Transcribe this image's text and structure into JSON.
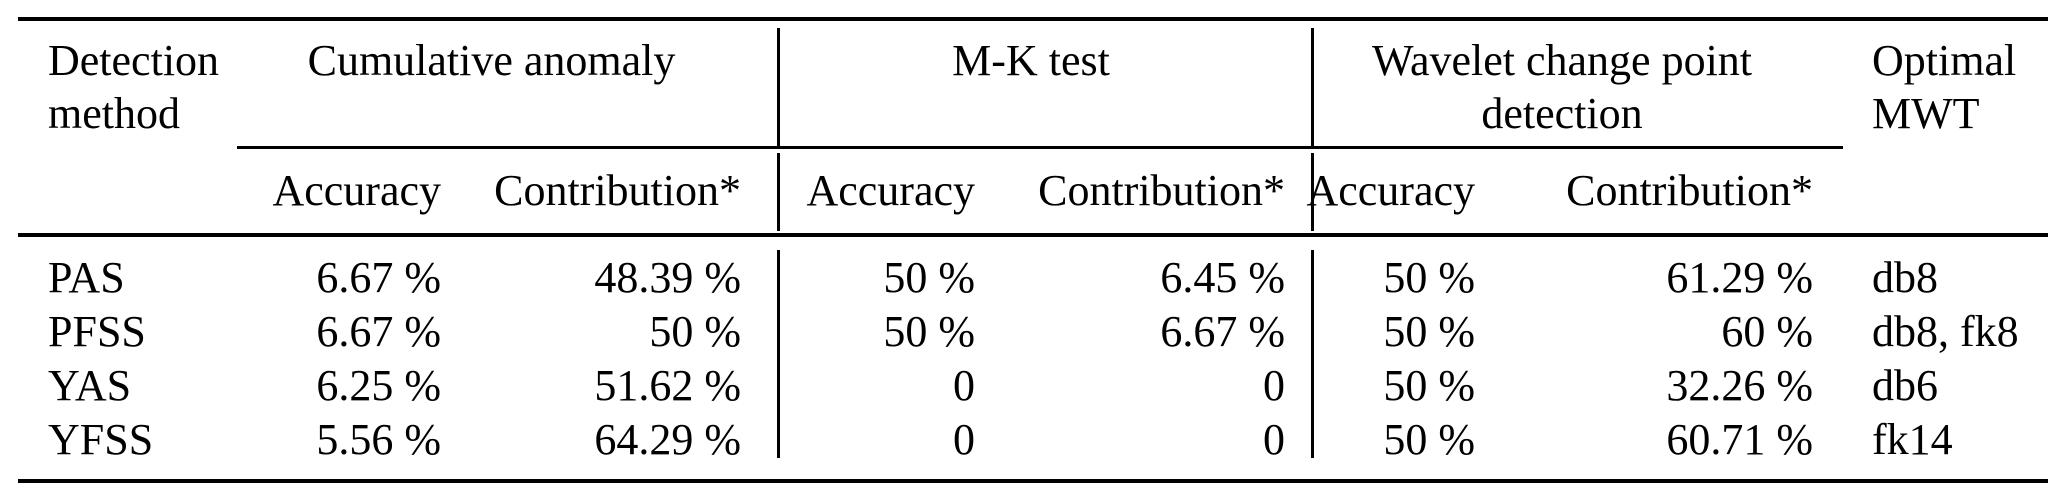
{
  "style": {
    "text_color": "#000000",
    "background_color": "#ffffff",
    "rule_color": "#000000"
  },
  "table": {
    "row_header": {
      "label": "Detection method"
    },
    "groups": [
      {
        "label": "Cumulative anomaly",
        "sub": [
          "Accuracy",
          "Contribution*"
        ]
      },
      {
        "label": "M-K test",
        "sub": [
          "Accuracy",
          "Contribution*"
        ]
      },
      {
        "label": "Wavelet change point detection",
        "sub": [
          "Accuracy",
          "Contribution*"
        ]
      }
    ],
    "last_col": {
      "label": "Optimal MWT"
    },
    "rows": [
      {
        "method": "PAS",
        "ca_acc": "6.67 %",
        "ca_con": "48.39 %",
        "mk_acc": "50 %",
        "mk_con": "6.45 %",
        "wv_acc": "50 %",
        "wv_con": "61.29 %",
        "mwt": "db8"
      },
      {
        "method": "PFSS",
        "ca_acc": "6.67 %",
        "ca_con": "50 %",
        "mk_acc": "50 %",
        "mk_con": "6.67 %",
        "wv_acc": "50 %",
        "wv_con": "60 %",
        "mwt": "db8, fk8"
      },
      {
        "method": "YAS",
        "ca_acc": "6.25 %",
        "ca_con": "51.62 %",
        "mk_acc": "0",
        "mk_con": "0",
        "wv_acc": "50 %",
        "wv_con": "32.26 %",
        "mwt": "db6"
      },
      {
        "method": "YFSS",
        "ca_acc": "5.56 %",
        "ca_con": "64.29 %",
        "mk_acc": "0",
        "mk_con": "0",
        "wv_acc": "50 %",
        "wv_con": "60.71 %",
        "mwt": "fk14"
      }
    ]
  }
}
